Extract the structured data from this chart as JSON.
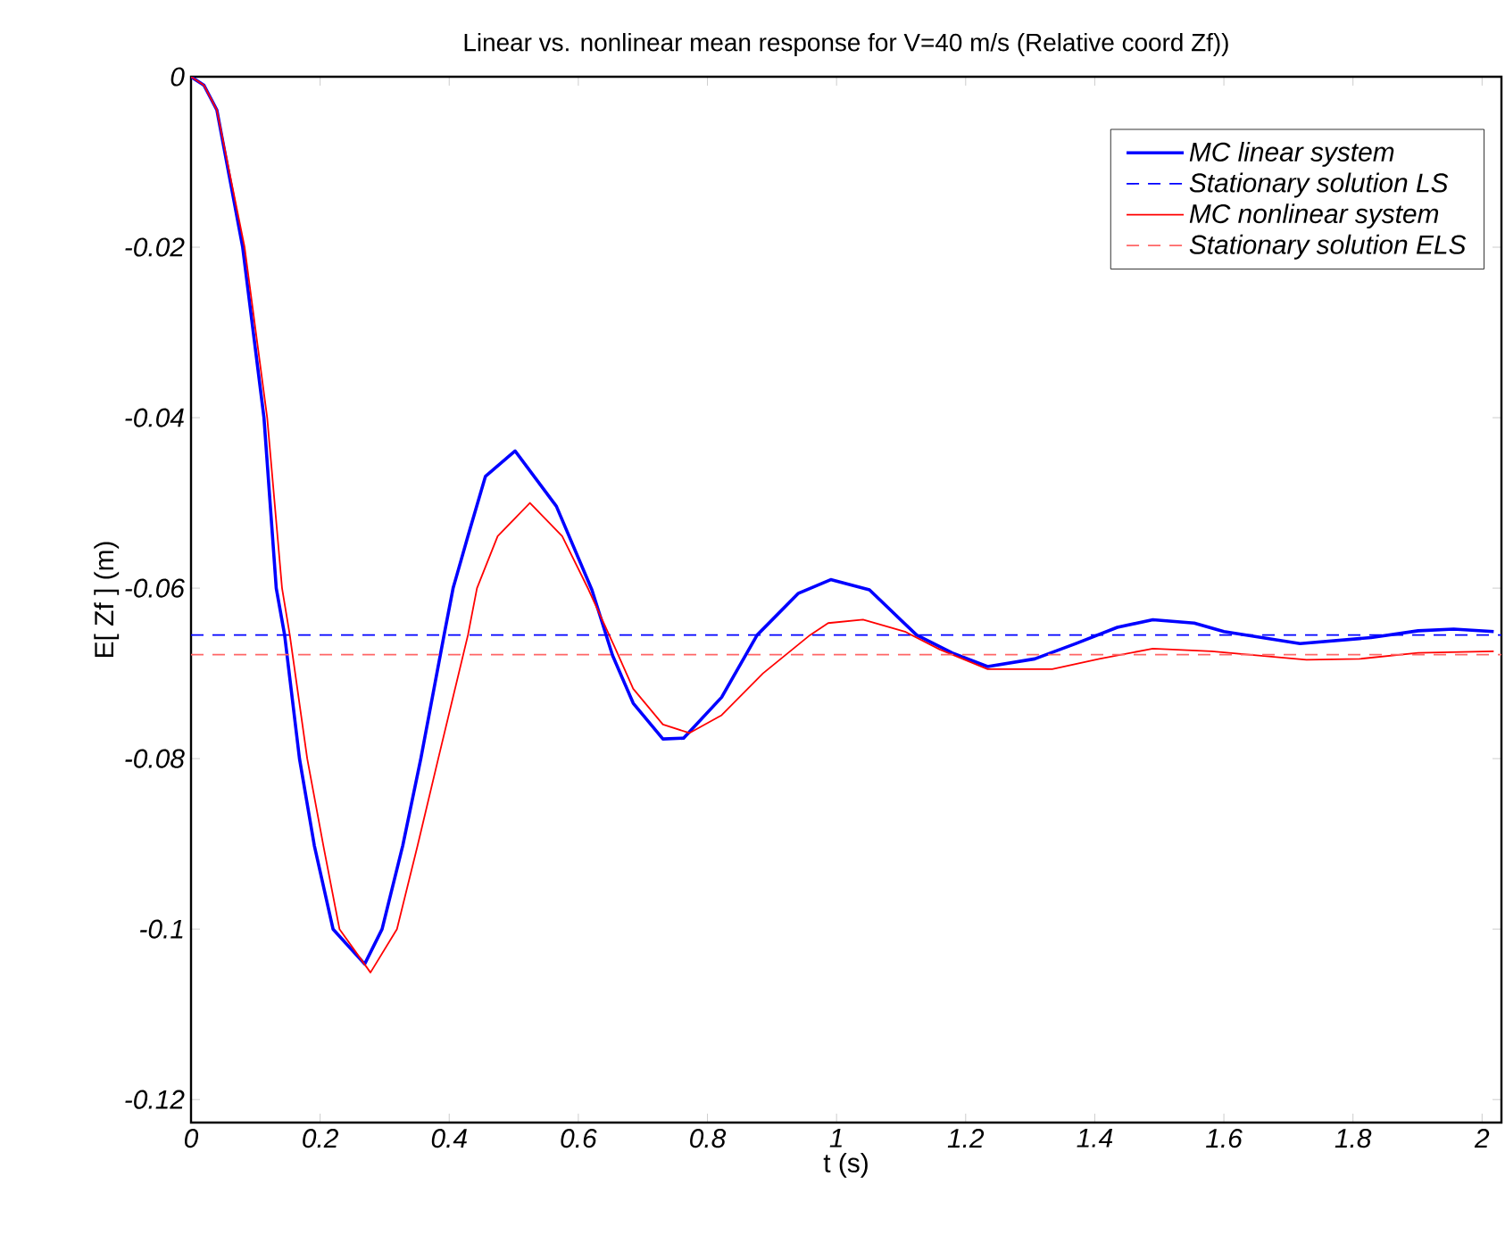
{
  "chart_data": {
    "type": "line",
    "title": "Linear vs. nonlinear mean response for V=40 m/s  (Relative coord Zf))",
    "xlabel": "t (s)",
    "ylabel": "E[ Zf ] (m)",
    "xlim": [
      0,
      2.03
    ],
    "ylim": [
      -0.1227,
      0
    ],
    "xticks": [
      0,
      0.2,
      0.4,
      0.6,
      0.8,
      1,
      1.2,
      1.4,
      1.6,
      1.8,
      2
    ],
    "yticks": [
      -0.12,
      -0.1,
      -0.08,
      -0.06,
      -0.04,
      -0.02,
      0
    ],
    "legend": "top right",
    "marker": "none",
    "series": [
      {
        "name": "MC linear system",
        "color": "#0000ff",
        "line_style": "solid",
        "x": [
          0,
          0.02,
          0.04,
          0.08,
          0.113,
          0.132,
          0.145,
          0.168,
          0.191,
          0.22,
          0.269,
          0.296,
          0.328,
          0.356,
          0.392,
          0.406,
          0.429,
          0.456,
          0.502,
          0.566,
          0.621,
          0.653,
          0.685,
          0.731,
          0.763,
          0.822,
          0.877,
          0.941,
          0.991,
          1.051,
          1.124,
          1.179,
          1.234,
          1.307,
          1.371,
          1.435,
          1.49,
          1.554,
          1.6,
          1.718,
          1.828,
          1.901,
          1.956,
          2.018
        ],
        "values": [
          0,
          -0.001,
          -0.0039,
          -0.02,
          -0.04,
          -0.06,
          -0.0655,
          -0.08,
          -0.0902,
          -0.1,
          -0.1041,
          -0.1,
          -0.0902,
          -0.08,
          -0.0655,
          -0.06,
          -0.0539,
          -0.0469,
          -0.0439,
          -0.0504,
          -0.0602,
          -0.0679,
          -0.0735,
          -0.0777,
          -0.0776,
          -0.0728,
          -0.0655,
          -0.0606,
          -0.059,
          -0.0602,
          -0.0655,
          -0.0676,
          -0.0692,
          -0.0683,
          -0.0665,
          -0.0646,
          -0.0637,
          -0.0641,
          -0.0651,
          -0.0665,
          -0.0658,
          -0.065,
          -0.0648,
          -0.0651
        ]
      },
      {
        "name": "Stationary solution LS",
        "color": "#0000ff",
        "line_style": "dashed",
        "x": [
          0,
          2.03
        ],
        "values": [
          -0.0655,
          -0.0655
        ]
      },
      {
        "name": "MC nonlinear system",
        "color": "#ff0000",
        "line_style": "solid",
        "x": [
          0,
          0.02,
          0.04,
          0.083,
          0.118,
          0.141,
          0.153,
          0.18,
          0.205,
          0.23,
          0.278,
          0.319,
          0.351,
          0.383,
          0.429,
          0.443,
          0.475,
          0.525,
          0.575,
          0.616,
          0.658,
          0.685,
          0.731,
          0.772,
          0.822,
          0.886,
          0.959,
          0.987,
          1.041,
          1.106,
          1.16,
          1.234,
          1.334,
          1.407,
          1.49,
          1.581,
          1.654,
          1.728,
          1.81,
          1.901,
          2.018
        ],
        "values": [
          0,
          -0.001,
          -0.0039,
          -0.02,
          -0.04,
          -0.06,
          -0.0655,
          -0.08,
          -0.0902,
          -0.1,
          -0.1051,
          -0.1,
          -0.0902,
          -0.08,
          -0.0655,
          -0.06,
          -0.0539,
          -0.05,
          -0.0539,
          -0.0602,
          -0.0672,
          -0.0718,
          -0.076,
          -0.077,
          -0.0749,
          -0.07,
          -0.0655,
          -0.0641,
          -0.0637,
          -0.0651,
          -0.0672,
          -0.0695,
          -0.0695,
          -0.0683,
          -0.0671,
          -0.0674,
          -0.0679,
          -0.0684,
          -0.0683,
          -0.0676,
          -0.0674
        ]
      },
      {
        "name": "Stationary solution ELS",
        "color": "#ff6666",
        "line_style": "dashed",
        "x": [
          0,
          2.03
        ],
        "values": [
          -0.0678,
          -0.0678
        ]
      }
    ]
  }
}
